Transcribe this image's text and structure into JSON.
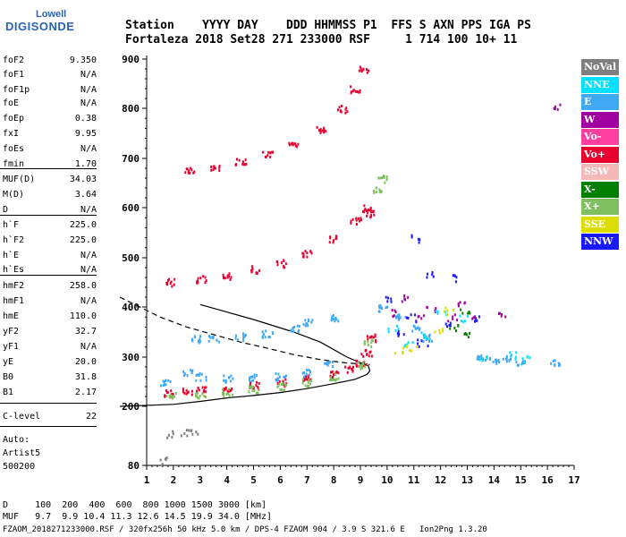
{
  "logo": {
    "line1": "Lowell",
    "line2": "DIGISONDE"
  },
  "header": {
    "row1": "Station    YYYY DAY    DDD HHMMSS P1  FFS S AXN PPS IGA PS",
    "row2": "Fortaleza 2018 Set28 271 233000 RSF     1 714 100 10+ 11"
  },
  "params": [
    {
      "label": "foF2",
      "value": "9.350"
    },
    {
      "label": "foF1",
      "value": "N/A"
    },
    {
      "label": "foF1p",
      "value": "N/A"
    },
    {
      "label": "foE",
      "value": "N/A"
    },
    {
      "label": "foEp",
      "value": "0.38"
    },
    {
      "label": "fxI",
      "value": "9.95"
    },
    {
      "label": "foEs",
      "value": "N/A"
    },
    {
      "label": "fmin",
      "value": "1.70"
    },
    {
      "label": "MUF(D)",
      "value": "34.03"
    },
    {
      "label": "M(D)",
      "value": "3.64"
    },
    {
      "label": "D",
      "value": "N/A"
    },
    {
      "label": "h`F",
      "value": "225.0"
    },
    {
      "label": "h`F2",
      "value": "225.0"
    },
    {
      "label": "h`E",
      "value": "N/A"
    },
    {
      "label": "h`Es",
      "value": "N/A"
    },
    {
      "label": "hmF2",
      "value": "258.0"
    },
    {
      "label": "hmF1",
      "value": "N/A"
    },
    {
      "label": "hmE",
      "value": "110.0"
    },
    {
      "label": "yF2",
      "value": "32.7"
    },
    {
      "label": "yF1",
      "value": "N/A"
    },
    {
      "label": "yE",
      "value": "20.0"
    },
    {
      "label": "B0",
      "value": "31.8"
    },
    {
      "label": "B1",
      "value": "2.17"
    },
    {
      "label": "C-level",
      "value": "22"
    }
  ],
  "auto": {
    "line1": "Auto:",
    "line2": "Artist5",
    "line3": "500200"
  },
  "legend": [
    {
      "label": "NoVal",
      "bg": "#7f7f7f",
      "fg": "#ffffff"
    },
    {
      "label": "NNE",
      "bg": "#00e0ff",
      "fg": "#ffffff"
    },
    {
      "label": "E",
      "bg": "#3fa9f5",
      "fg": "#ffffff"
    },
    {
      "label": "W",
      "bg": "#a0009f",
      "fg": "#ffffff"
    },
    {
      "label": "Vo-",
      "bg": "#ff3fa0",
      "fg": "#ffffff"
    },
    {
      "label": "Vo+",
      "bg": "#e8002f",
      "fg": "#ffffff"
    },
    {
      "label": "SSW",
      "bg": "#f4b8b8",
      "fg": "#ffffff"
    },
    {
      "label": "X-",
      "bg": "#007f00",
      "fg": "#ffffff"
    },
    {
      "label": "X+",
      "bg": "#7fbf5f",
      "fg": "#ffffff"
    },
    {
      "label": "SSE",
      "bg": "#dddd00",
      "fg": "#ffffff"
    },
    {
      "label": "NNW",
      "bg": "#1a1aff",
      "fg": "#ffffff"
    }
  ],
  "bottom": {
    "d_line": "D     100  200  400  600  800 1000 1500 3000 [km]",
    "muf_line": "MUF   9.7  9.9 10.4 11.3 12.6 14.5 19.9 34.0 [MHz]",
    "footer": "FZAOM_2018271233000.RSF / 320fx256h 50 kHz 5.0 km / DPS-4 FZAOM 904 / 3.9 S 321.6 E   Ion2Png 1.3.20"
  },
  "chart_data": {
    "type": "scatter",
    "xlim": [
      1,
      17
    ],
    "ylim": [
      80,
      900
    ],
    "x_ticks": [
      1,
      2,
      3,
      4,
      5,
      6,
      7,
      8,
      9,
      10,
      11,
      12,
      13,
      14,
      15,
      16,
      17
    ],
    "y_ticks": [
      80,
      200,
      300,
      400,
      500,
      600,
      700,
      800,
      900
    ],
    "grid": false,
    "legend_position": "right",
    "series": [
      {
        "name": "Vo+",
        "color": "#e8002f",
        "points": [
          [
            1.8,
            228
          ],
          [
            2.5,
            232
          ],
          [
            3,
            234
          ],
          [
            4,
            238
          ],
          [
            5,
            244
          ],
          [
            6,
            250
          ],
          [
            7,
            258
          ],
          [
            8,
            266
          ],
          [
            8.5,
            276
          ],
          [
            9,
            290
          ],
          [
            9.2,
            310
          ],
          [
            9.35,
            340
          ],
          [
            1.9,
            452
          ],
          [
            3,
            458
          ],
          [
            4,
            465
          ],
          [
            5,
            478
          ],
          [
            6,
            490
          ],
          [
            7,
            510
          ],
          [
            8,
            540
          ],
          [
            8.8,
            575
          ],
          [
            9.2,
            600
          ],
          [
            9.3,
            590
          ],
          [
            2.6,
            680
          ],
          [
            3.5,
            685
          ],
          [
            4.5,
            695
          ],
          [
            5.5,
            710
          ],
          [
            6.5,
            730
          ],
          [
            7.5,
            760
          ],
          [
            8.3,
            800
          ],
          [
            8.8,
            840
          ],
          [
            9.1,
            880
          ]
        ]
      },
      {
        "name": "X+",
        "color": "#7fbf5f",
        "points": [
          [
            1.9,
            222
          ],
          [
            3,
            226
          ],
          [
            4,
            230
          ],
          [
            5,
            236
          ],
          [
            6,
            242
          ],
          [
            7,
            250
          ],
          [
            8,
            262
          ],
          [
            9,
            285
          ],
          [
            9.3,
            330
          ],
          [
            9.6,
            640
          ],
          [
            9.8,
            660
          ]
        ]
      },
      {
        "name": "E",
        "color": "#3fa9f5",
        "points": [
          [
            1.7,
            250
          ],
          [
            2.5,
            270
          ],
          [
            3,
            262
          ],
          [
            4,
            258
          ],
          [
            5,
            260
          ],
          [
            6,
            262
          ],
          [
            7,
            270
          ],
          [
            7.8,
            290
          ],
          [
            2.8,
            338
          ],
          [
            3.5,
            340
          ],
          [
            4.5,
            342
          ],
          [
            5.5,
            348
          ],
          [
            6.5,
            360
          ],
          [
            7,
            370
          ],
          [
            8,
            380
          ],
          [
            9.8,
            400
          ],
          [
            10.5,
            380
          ],
          [
            11,
            360
          ],
          [
            11.5,
            340
          ],
          [
            13.5,
            300
          ],
          [
            14,
            296
          ],
          [
            14.5,
            300
          ],
          [
            15,
            292
          ],
          [
            16.3,
            290
          ]
        ]
      },
      {
        "name": "W",
        "color": "#a0009f",
        "points": [
          [
            10.3,
            390
          ],
          [
            10.7,
            420
          ],
          [
            11.2,
            380
          ],
          [
            11.6,
            400
          ],
          [
            12.4,
            380
          ],
          [
            12.7,
            410
          ],
          [
            13.2,
            380
          ],
          [
            14.2,
            385
          ],
          [
            16.4,
            805
          ]
        ]
      },
      {
        "name": "NNW",
        "color": "#1a1aff",
        "points": [
          [
            10.1,
            420
          ],
          [
            10.5,
            350
          ],
          [
            10.9,
            380
          ],
          [
            11.3,
            330
          ],
          [
            11.6,
            470
          ],
          [
            12.2,
            370
          ],
          [
            12.6,
            460
          ],
          [
            13.3,
            380
          ],
          [
            11,
            540
          ]
        ]
      },
      {
        "name": "NNE",
        "color": "#00e0ff",
        "points": [
          [
            10.2,
            360
          ],
          [
            10.8,
            330
          ],
          [
            11.4,
            345
          ],
          [
            12.0,
            390
          ],
          [
            12.8,
            380
          ],
          [
            13.6,
            300
          ],
          [
            14.6,
            305
          ],
          [
            15.2,
            298
          ]
        ]
      },
      {
        "name": "SSE",
        "color": "#dddd00",
        "points": [
          [
            10.4,
            315
          ],
          [
            10.9,
            320
          ],
          [
            11.9,
            355
          ],
          [
            12.3,
            395
          ]
        ]
      },
      {
        "name": "X-",
        "color": "#007f00",
        "points": [
          [
            12.5,
            360
          ],
          [
            12.9,
            395
          ],
          [
            13.0,
            345
          ]
        ]
      },
      {
        "name": "NoVal",
        "color": "#7f7f7f",
        "points": [
          [
            1.6,
            92
          ],
          [
            1.85,
            145
          ],
          [
            2.4,
            148
          ],
          [
            2.8,
            150
          ]
        ]
      }
    ],
    "profile_solid": [
      [
        0,
        200
      ],
      [
        2,
        204
      ],
      [
        3,
        210
      ],
      [
        4,
        217
      ],
      [
        5,
        222
      ],
      [
        6,
        228
      ],
      [
        7,
        236
      ],
      [
        8,
        246
      ],
      [
        8.8,
        255
      ],
      [
        9.25,
        265
      ],
      [
        9.35,
        272
      ],
      [
        9.3,
        282
      ],
      [
        8.5,
        300
      ],
      [
        7.5,
        330
      ],
      [
        6.5,
        350
      ],
      [
        5,
        375
      ],
      [
        4,
        390
      ],
      [
        3,
        405
      ]
    ],
    "profile_dashed": [
      [
        0,
        420
      ],
      [
        1.5,
        380
      ],
      [
        2.5,
        360
      ],
      [
        3.5,
        345
      ],
      [
        4.5,
        330
      ],
      [
        5.5,
        318
      ],
      [
        6.5,
        305
      ],
      [
        7.5,
        295
      ],
      [
        8.5,
        288
      ],
      [
        9.35,
        285
      ]
    ]
  }
}
